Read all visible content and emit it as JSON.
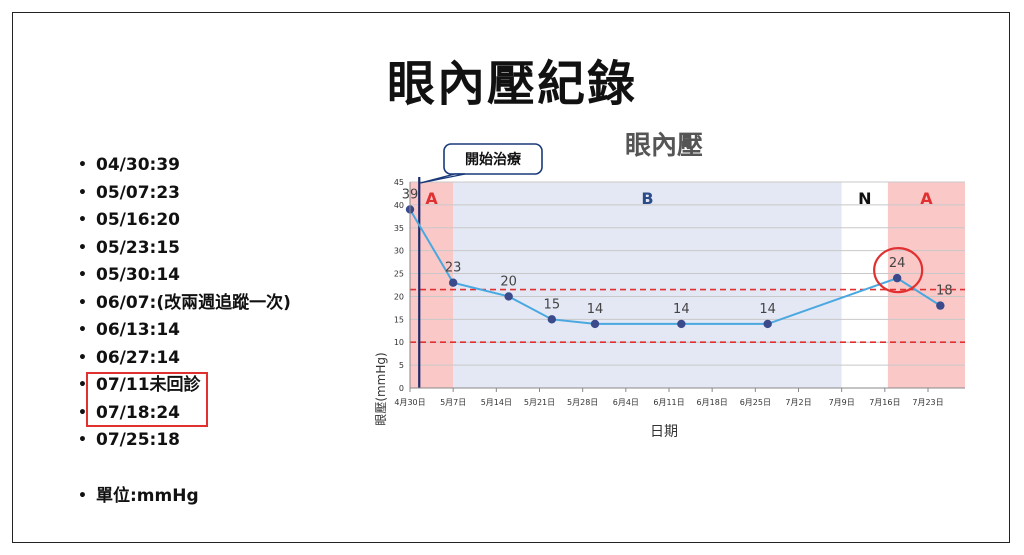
{
  "slide": {
    "title": "眼內壓紀錄",
    "readings": [
      "04/30:39",
      "05/07:23",
      "05/16:20",
      "05/23:15",
      "05/30:14",
      "06/07:(改兩週追蹤一次)",
      "06/13:14",
      "06/27:14",
      "07/11未回診",
      "07/18:24",
      "07/25:18"
    ],
    "unit_note": "單位:mmHg",
    "bullet": "•"
  },
  "chart_data": {
    "type": "line",
    "title": "眼內壓",
    "xlabel": "日期",
    "ylabel": "眼壓(mmHg)",
    "ylim": [
      0,
      45
    ],
    "yticks": [
      0,
      5,
      10,
      15,
      20,
      25,
      30,
      35,
      40,
      45
    ],
    "xticks": [
      "4月30日",
      "5月7日",
      "5月14日",
      "5月21日",
      "5月28日",
      "6月4日",
      "6月11日",
      "6月18日",
      "6月25日",
      "7月2日",
      "7月9日",
      "7月16日",
      "7月23日"
    ],
    "x_range_days": [
      0,
      90
    ],
    "series": [
      {
        "x": [
          "4月30日",
          "5月7日",
          "5月16日",
          "5月23日",
          "5月30日",
          "6月13日",
          "6月27日",
          "7月18日",
          "7月25日"
        ],
        "x_days": [
          0,
          7,
          16,
          23,
          30,
          44,
          58,
          79,
          86
        ],
        "values": [
          39,
          23,
          20,
          15,
          14,
          14,
          14,
          24,
          18
        ],
        "color": "#4aa8e0",
        "marker_color": "#3a4a8a"
      }
    ],
    "reference_lines": [
      21.5,
      10
    ],
    "reference_color": "#e03030",
    "regions": [
      {
        "label": "A",
        "from": "4月30日",
        "to": "5月7日",
        "from_day": 0,
        "to_day": 7,
        "color": "#fbc8c8",
        "label_color": "#e03030"
      },
      {
        "label": "B",
        "from": "5月7日",
        "to": "7月9日",
        "from_day": 7,
        "to_day": 70,
        "color": "#e4e8f4",
        "label_color": "#2a4a8a"
      },
      {
        "label": "N",
        "from": "7月9日",
        "to": "7月16日",
        "from_day": 70,
        "to_day": 77.5,
        "color": "#ffffff",
        "label_color": "#111111"
      },
      {
        "label": "A",
        "from": "7月16日",
        "to": "7月25日",
        "from_day": 77.5,
        "to_day": 90,
        "color": "#fbc8c8",
        "label_color": "#e03030"
      }
    ],
    "treatment_start": {
      "label": "開始治療",
      "day": 1.5,
      "line_color": "#1a2a6a"
    },
    "highlight_point": {
      "x": "7月18日",
      "x_day": 79,
      "value": 24,
      "color": "#e03030"
    },
    "grid": true
  }
}
